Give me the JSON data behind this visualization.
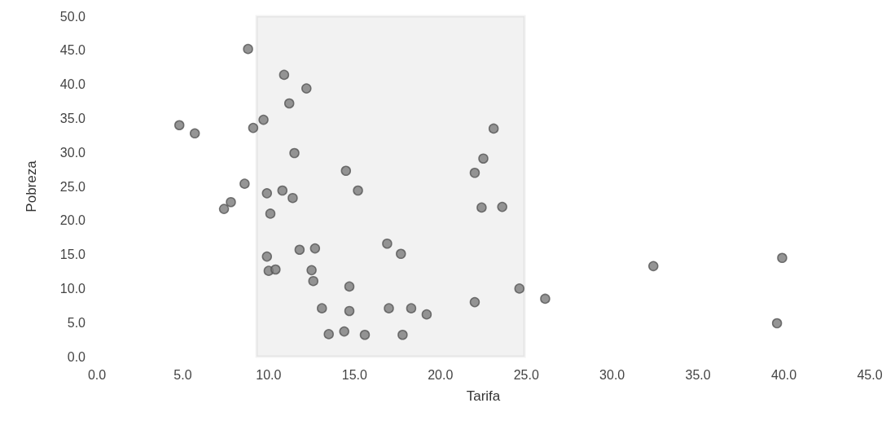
{
  "chart_data": {
    "type": "scatter",
    "xlabel": "Tarifa",
    "ylabel": "Pobreza",
    "grid": false,
    "marker": "circle",
    "xlim": [
      0,
      45
    ],
    "ylim": [
      0,
      50
    ],
    "xticks": [
      {
        "value": 0,
        "label": "0.0"
      },
      {
        "value": 5,
        "label": "5.0"
      },
      {
        "value": 10,
        "label": "10.0"
      },
      {
        "value": 15,
        "label": "15.0"
      },
      {
        "value": 20,
        "label": "20.0"
      },
      {
        "value": 25,
        "label": "25.0"
      },
      {
        "value": 30,
        "label": "30.0"
      },
      {
        "value": 35,
        "label": "35.0"
      },
      {
        "value": 40,
        "label": "40.0"
      },
      {
        "value": 45,
        "label": "45.0"
      }
    ],
    "yticks": [
      {
        "value": 0,
        "label": "0.0"
      },
      {
        "value": 5,
        "label": "5.0"
      },
      {
        "value": 10,
        "label": "10.0"
      },
      {
        "value": 15,
        "label": "15.0"
      },
      {
        "value": 20,
        "label": "20.0"
      },
      {
        "value": 25,
        "label": "25.0"
      },
      {
        "value": 30,
        "label": "30.0"
      },
      {
        "value": 35,
        "label": "35.0"
      },
      {
        "value": 40,
        "label": "40.0"
      },
      {
        "value": 45,
        "label": "45.0"
      },
      {
        "value": 50,
        "label": "50.0"
      }
    ],
    "bands": [
      {
        "axis": "x",
        "from": 9.3,
        "to": 24.9,
        "color": "#222222"
      }
    ],
    "series": [
      {
        "color": "#7a7a7a",
        "x": [
          8.8,
          10.9,
          12.2,
          11.2,
          9.7,
          9.1,
          4.8,
          5.7,
          11.5,
          14.5,
          8.6,
          9.9,
          10.8,
          11.4,
          15.2,
          7.8,
          7.4,
          10.1,
          9.9,
          11.8,
          12.7,
          16.9,
          17.7,
          10.0,
          10.4,
          12.5,
          12.6,
          14.7,
          13.1,
          14.7,
          17.0,
          18.3,
          19.2,
          13.5,
          14.4,
          15.6,
          17.8,
          23.1,
          22.5,
          22.0,
          22.4,
          23.6,
          24.6,
          22.0,
          26.1,
          32.4,
          39.9,
          39.6
        ],
        "values": [
          45.2,
          41.4,
          39.4,
          37.2,
          34.8,
          33.6,
          34.0,
          32.8,
          29.9,
          27.3,
          25.4,
          24.0,
          24.4,
          23.3,
          24.4,
          22.7,
          21.7,
          21.0,
          14.7,
          15.7,
          15.9,
          16.6,
          15.1,
          12.6,
          12.8,
          12.7,
          11.1,
          10.3,
          7.1,
          6.7,
          7.1,
          7.1,
          6.2,
          3.3,
          3.7,
          3.2,
          3.2,
          33.5,
          29.1,
          27.0,
          21.9,
          22.0,
          10.0,
          8.0,
          8.5,
          13.3,
          14.5,
          4.9
        ]
      }
    ]
  }
}
